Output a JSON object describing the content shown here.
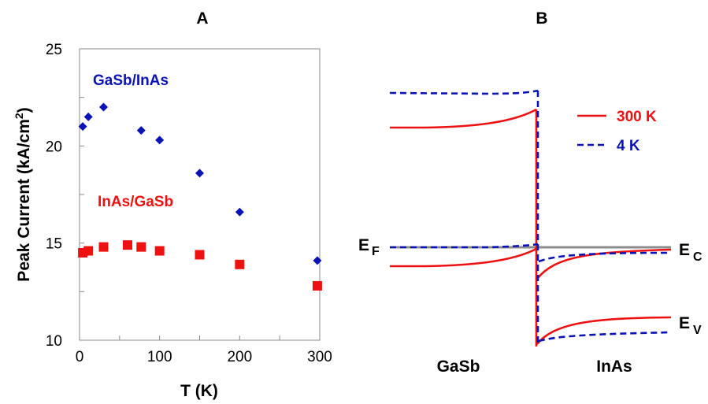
{
  "colors": {
    "gasb_inas": "#0a14b4",
    "inas_gasb": "#ee1111",
    "curve_300k": "#ee1111",
    "curve_4k": "#0a14b4",
    "fermi_level": "#8c8c8c",
    "fermi_label": "#8c8c8c"
  },
  "chart_data": [
    {
      "panel": "A",
      "type": "scatter",
      "title": "A",
      "xlabel": "T (K)",
      "ylabel_main": "Peak Current (kA/cm",
      "ylabel_sup": "2",
      "ylabel_tail": ")",
      "xlim": [
        0,
        300
      ],
      "ylim": [
        10,
        25
      ],
      "xticks": [
        0,
        100,
        200,
        300
      ],
      "yticks": [
        10,
        15,
        20,
        25
      ],
      "grid": false,
      "series": [
        {
          "name": "GaSb/InAs",
          "marker": "diamond",
          "color_key": "gasb_inas",
          "x": [
            4,
            11,
            30,
            77,
            100,
            150,
            200,
            297
          ],
          "y": [
            21.0,
            21.5,
            22.0,
            20.8,
            20.3,
            18.6,
            16.6,
            14.1
          ]
        },
        {
          "name": "InAs/GaSb",
          "marker": "square",
          "color_key": "inas_gasb",
          "x": [
            4,
            11,
            30,
            60,
            77,
            100,
            150,
            200,
            297
          ],
          "y": [
            14.5,
            14.6,
            14.8,
            14.9,
            14.8,
            14.6,
            14.4,
            13.9,
            12.8
          ]
        }
      ]
    },
    {
      "panel": "B",
      "type": "line",
      "title": "B",
      "region_labels": [
        "GaSb",
        "InAs"
      ],
      "band_labels": {
        "fermi_main": "E",
        "fermi_sub": "F",
        "conduction_main": "E",
        "conduction_sub": "C",
        "valence_main": "E",
        "valence_sub": "V"
      },
      "legend": [
        {
          "name": "300 K",
          "style": "solid",
          "color_key": "curve_300k"
        },
        {
          "name": "4 K",
          "style": "dashed",
          "color_key": "curve_4k"
        }
      ],
      "legend_position": "top-right"
    }
  ]
}
